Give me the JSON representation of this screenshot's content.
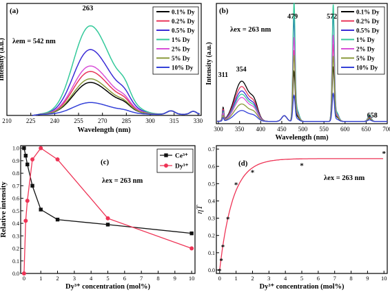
{
  "colors": {
    "c0_1": "#000000",
    "c0_2": "#e8345a",
    "c0_5": "#3a2bd6",
    "c1": "#33c99a",
    "c2": "#d84fd8",
    "c5": "#8a9a3a",
    "c10": "#3340d8",
    "ce": "#111111",
    "dy": "#ee3355",
    "fit": "#ee3355"
  },
  "chart_data": [
    {
      "type": "line",
      "panel": "(a)",
      "annotation": "λem = 542 nm",
      "peak_label": "263",
      "xlabel": "Wavelength (nm)",
      "ylabel": "Intensity (a.u.)",
      "xlim": [
        210,
        332
      ],
      "xticks": [
        210,
        225,
        240,
        255,
        270,
        285,
        300,
        315,
        330
      ],
      "ylim": [
        0,
        1
      ],
      "legend": [
        "0.1% Dy",
        "0.2% Dy",
        "0.5% Dy",
        "1% Dy",
        "2% Dy",
        "5% Dy",
        "10% Dy"
      ],
      "legend_position": "top-right",
      "series": [
        {
          "name": "0.1% Dy",
          "color_key": "c0_1",
          "amp": 0.35
        },
        {
          "name": "0.2% Dy",
          "color_key": "c0_2",
          "amp": 0.47
        },
        {
          "name": "0.5% Dy",
          "color_key": "c0_5",
          "amp": 0.71
        },
        {
          "name": "1% Dy",
          "color_key": "c1",
          "amp": 0.97
        },
        {
          "name": "2% Dy",
          "color_key": "c2",
          "amp": 0.53
        },
        {
          "name": "5% Dy",
          "color_key": "c5",
          "amp": 0.39
        },
        {
          "name": "10% Dy",
          "color_key": "c10",
          "amp": 0.13
        }
      ]
    },
    {
      "type": "line",
      "panel": "(b)",
      "annotation": "λex = 263 nm",
      "peak_labels": [
        "311",
        "354",
        "479",
        "572",
        "658"
      ],
      "xlabel": "Wavelength (nm)",
      "ylabel": "Intensity (a.u.)",
      "xlim": [
        295,
        700
      ],
      "xticks": [
        300,
        350,
        400,
        450,
        500,
        550,
        600,
        650,
        700
      ],
      "ylim": [
        0,
        1
      ],
      "legend": [
        "0.1% Dy",
        "0.2% Dy",
        "0.5% Dy",
        "1% Dy",
        "2% Dy",
        "5% Dy",
        "10% Dy"
      ],
      "legend_position": "top-right",
      "series": [
        {
          "name": "0.1% Dy",
          "color_key": "c0_1",
          "uv": 0.37,
          "peak479": 0.42,
          "peak572": 0.47
        },
        {
          "name": "0.2% Dy",
          "color_key": "c0_2",
          "uv": 0.32,
          "peak479": 0.6,
          "peak572": 0.66
        },
        {
          "name": "0.5% Dy",
          "color_key": "c0_5",
          "uv": 0.28,
          "peak479": 0.87,
          "peak572": 0.93
        },
        {
          "name": "1% Dy",
          "color_key": "c1",
          "uv": 0.25,
          "peak479": 1.0,
          "peak572": 1.0
        },
        {
          "name": "2% Dy",
          "color_key": "c2",
          "uv": 0.22,
          "peak479": 0.71,
          "peak572": 0.74
        },
        {
          "name": "5% Dy",
          "color_key": "c5",
          "uv": 0.16,
          "peak479": 0.56,
          "peak572": 0.56
        },
        {
          "name": "10% Dy",
          "color_key": "c10",
          "uv": 0.1,
          "peak479": 0.22,
          "peak572": 0.24
        }
      ]
    },
    {
      "type": "line",
      "panel": "(c)",
      "annotation": "λex = 263 nm",
      "xlabel": "Dy³⁺ concentration (mol%)",
      "ylabel": "Relative intensity",
      "xlim": [
        -0.2,
        10.2
      ],
      "ylim": [
        0,
        1.02
      ],
      "xticks": [
        0,
        1,
        2,
        3,
        4,
        5,
        6,
        7,
        8,
        9,
        10
      ],
      "yticks": [
        0.0,
        0.1,
        0.2,
        0.3,
        0.4,
        0.5,
        0.6,
        0.7,
        0.8,
        0.9,
        1.0
      ],
      "legend_position": "top-right",
      "series": [
        {
          "name": "Ce³⁺",
          "color_key": "ce",
          "marker": "square",
          "x": [
            0,
            0.1,
            0.2,
            0.5,
            1,
            2,
            5,
            10
          ],
          "y": [
            1.0,
            0.94,
            0.87,
            0.7,
            0.51,
            0.43,
            0.39,
            0.32
          ]
        },
        {
          "name": "Dy³⁺",
          "color_key": "dy",
          "marker": "circle",
          "x": [
            0,
            0.1,
            0.2,
            0.5,
            1,
            2,
            5,
            10
          ],
          "y": [
            0.0,
            0.42,
            0.58,
            0.91,
            1.0,
            0.91,
            0.44,
            0.2
          ]
        }
      ]
    },
    {
      "type": "scatter",
      "panel": "(d)",
      "annotation": "λex = 263 nm",
      "xlabel": "Dy³⁺ concentration (mol%)",
      "ylabel": "ηT",
      "xlim": [
        -0.2,
        10.2
      ],
      "ylim": [
        -0.02,
        0.72
      ],
      "xticks": [
        0,
        1,
        2,
        3,
        4,
        5,
        6,
        7,
        8,
        9,
        10
      ],
      "yticks": [
        0.0,
        0.1,
        0.2,
        0.3,
        0.4,
        0.5,
        0.6,
        0.7
      ],
      "points": {
        "x": [
          0,
          0.1,
          0.2,
          0.5,
          1,
          2,
          5,
          10
        ],
        "y": [
          0.0,
          0.06,
          0.14,
          0.3,
          0.5,
          0.57,
          0.61,
          0.68
        ]
      },
      "fit": {
        "plateau": 0.645,
        "rate": 1.25
      }
    }
  ]
}
